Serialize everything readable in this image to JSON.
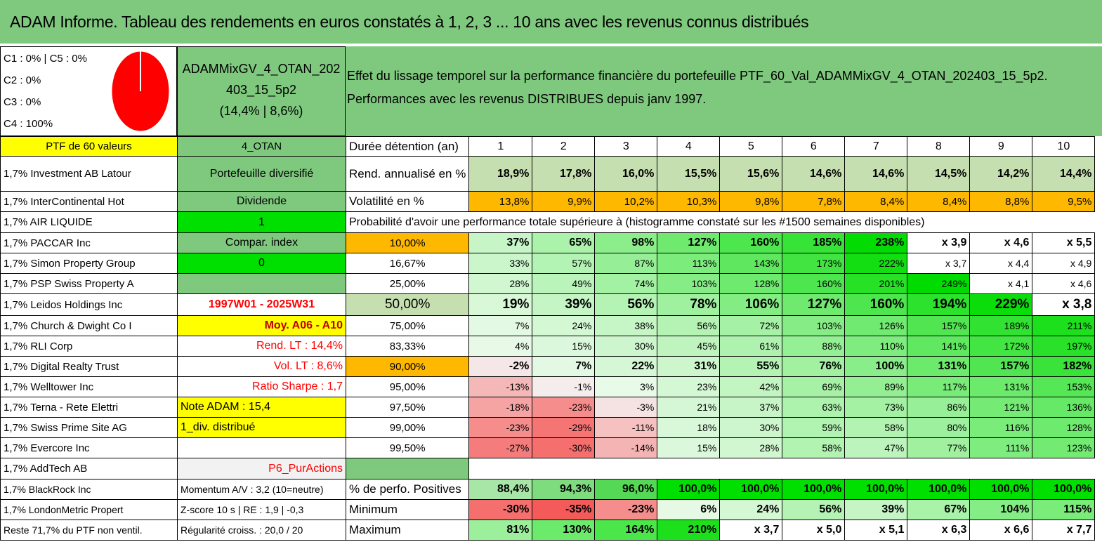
{
  "title": "ADAM Informe. Tableau des rendements en euros constatés à 1, 2, 3 ... 10 ans avec les revenus connus distribués",
  "classes": [
    "C1 : 0% | C5 : 0%",
    "C2 : 0%",
    "C3 : 0%",
    "C4 : 100%"
  ],
  "portfolio": {
    "name_line1": "ADAMMixGV_4_OTAN_202",
    "name_line2": "403_15_5p2",
    "name_line3": "(14,4% | 8,6%)"
  },
  "description": {
    "line1": "Effet du lissage temporel sur la performance financière du portefeuille PTF_60_Val_ADAMMixGV_4_OTAN_202403_15_5p2.",
    "line2": "Performances avec les revenus DISTRIBUES depuis janv 1997."
  },
  "pie": {
    "C4": 100
  },
  "colors": {
    "header_green": "#7fc97f",
    "yellow": "#ffff00",
    "bright_green": "#00e000",
    "orange": "#ffb800",
    "red_text": "#ff0000"
  },
  "header_row": {
    "c0": "PTF de 60 valeurs",
    "c1": "4_OTAN",
    "c2": "Durée détention (an)",
    "years": [
      "1",
      "2",
      "3",
      "4",
      "5",
      "6",
      "7",
      "8",
      "9",
      "10"
    ]
  },
  "rend_row": {
    "c0": "1,7% Investment AB Latour",
    "c1": "Portefeuille diversifié",
    "c2": "Rend. annualisé en %",
    "vals": [
      "18,9%",
      "17,8%",
      "16,0%",
      "15,5%",
      "15,6%",
      "14,6%",
      "14,6%",
      "14,5%",
      "14,2%",
      "14,4%"
    ]
  },
  "vol_row": {
    "c0": "1,7% InterContinental Hot",
    "c1": "Dividende",
    "c2": "Volatilité en %",
    "vals": [
      "13,8%",
      "9,9%",
      "10,2%",
      "10,3%",
      "9,8%",
      "7,8%",
      "8,4%",
      "8,4%",
      "8,8%",
      "9,5%"
    ]
  },
  "prob_row": {
    "c0": "1,7% AIR LIQUIDE",
    "c1": "1",
    "label": "Probabilité d'avoir une performance totale supérieure à (histogramme constaté sur les #1500 semaines disponibles)"
  },
  "dist_rows": [
    {
      "c0": "1,7% PACCAR Inc",
      "c1": "Compar. index",
      "pct": "10,00%",
      "vals": [
        "37%",
        "65%",
        "98%",
        "127%",
        "160%",
        "185%",
        "238%",
        "x 3,9",
        "x 4,6",
        "x 5,5"
      ]
    },
    {
      "c0": "1,7% Simon Property Group",
      "c1": "0",
      "pct": "16,67%",
      "vals": [
        "33%",
        "57%",
        "87%",
        "113%",
        "143%",
        "173%",
        "222%",
        "x 3,7",
        "x 4,4",
        "x 4,9"
      ]
    },
    {
      "c0": "1,7% PSP Swiss Property A",
      "c1": "",
      "pct": "25,00%",
      "vals": [
        "28%",
        "49%",
        "74%",
        "103%",
        "128%",
        "160%",
        "201%",
        "249%",
        "x 4,1",
        "x 4,6"
      ]
    },
    {
      "c0": "1,7% Leidos Holdings Inc",
      "c1": "1997W01 - 2025W31",
      "pct": "50,00%",
      "vals": [
        "19%",
        "39%",
        "56%",
        "78%",
        "106%",
        "127%",
        "160%",
        "194%",
        "229%",
        "x 3,8"
      ]
    },
    {
      "c0": "1,7% Church & Dwight Co I",
      "c1": "Moy. A06 - A10",
      "pct": "75,00%",
      "vals": [
        "7%",
        "24%",
        "38%",
        "56%",
        "72%",
        "103%",
        "126%",
        "157%",
        "189%",
        "211%"
      ]
    },
    {
      "c0": "1,7% RLI Corp",
      "c1": "Rend. LT : 14,4%",
      "pct": "83,33%",
      "vals": [
        "4%",
        "15%",
        "30%",
        "45%",
        "61%",
        "88%",
        "110%",
        "141%",
        "172%",
        "197%"
      ]
    },
    {
      "c0": "1,7% Digital Realty Trust",
      "c1": "Vol. LT : 8,6%",
      "pct": "90,00%",
      "vals": [
        "-2%",
        "7%",
        "22%",
        "31%",
        "55%",
        "76%",
        "100%",
        "131%",
        "157%",
        "182%"
      ]
    },
    {
      "c0": "1,7% Welltower Inc",
      "c1": "Ratio Sharpe : 1,7",
      "pct": "95,00%",
      "vals": [
        "-13%",
        "-1%",
        "3%",
        "23%",
        "42%",
        "69%",
        "89%",
        "117%",
        "131%",
        "153%"
      ]
    },
    {
      "c0": "1,7% Terna - Rete Elettri",
      "c1": "Note ADAM : 15,4",
      "pct": "97,50%",
      "vals": [
        "-18%",
        "-23%",
        "-3%",
        "21%",
        "37%",
        "63%",
        "73%",
        "86%",
        "121%",
        "136%"
      ]
    },
    {
      "c0": "1,7% Swiss Prime Site AG",
      "c1": "1_div. distribué",
      "pct": "99,00%",
      "vals": [
        "-23%",
        "-29%",
        "-11%",
        "18%",
        "30%",
        "59%",
        "58%",
        "80%",
        "116%",
        "128%"
      ]
    },
    {
      "c0": "1,7% Evercore Inc",
      "c1": "",
      "pct": "99,50%",
      "vals": [
        "-27%",
        "-30%",
        "-14%",
        "15%",
        "28%",
        "58%",
        "47%",
        "77%",
        "111%",
        "123%"
      ]
    }
  ],
  "addtech_row": {
    "c0": "1,7% AddTech AB",
    "c1": "P6_PurActions"
  },
  "stats_rows": [
    {
      "c0": "1,7% BlackRock Inc",
      "c1": "Momentum A/V : 3,2 (10=neutre)",
      "c2": "% de perfo. Positives",
      "vals": [
        "88,4%",
        "94,3%",
        "96,0%",
        "100,0%",
        "100,0%",
        "100,0%",
        "100,0%",
        "100,0%",
        "100,0%",
        "100,0%"
      ]
    },
    {
      "c0": "1,7% LondonMetric Propert",
      "c1": "Z-score 10 s | RE : 1,9 | -0,3",
      "c2": "Minimum",
      "vals": [
        "-30%",
        "-35%",
        "-23%",
        "6%",
        "24%",
        "56%",
        "39%",
        "67%",
        "104%",
        "115%"
      ]
    },
    {
      "c0": "Reste 71,7% du PTF non ventil.",
      "c1": "Régularité croiss. : 20,0 / 20",
      "c2": "Maximum",
      "vals": [
        "81%",
        "130%",
        "164%",
        "210%",
        "x 3,7",
        "x 5,0",
        "x 5,1",
        "x 6,3",
        "x 6,6",
        "x 7,7"
      ]
    }
  ]
}
